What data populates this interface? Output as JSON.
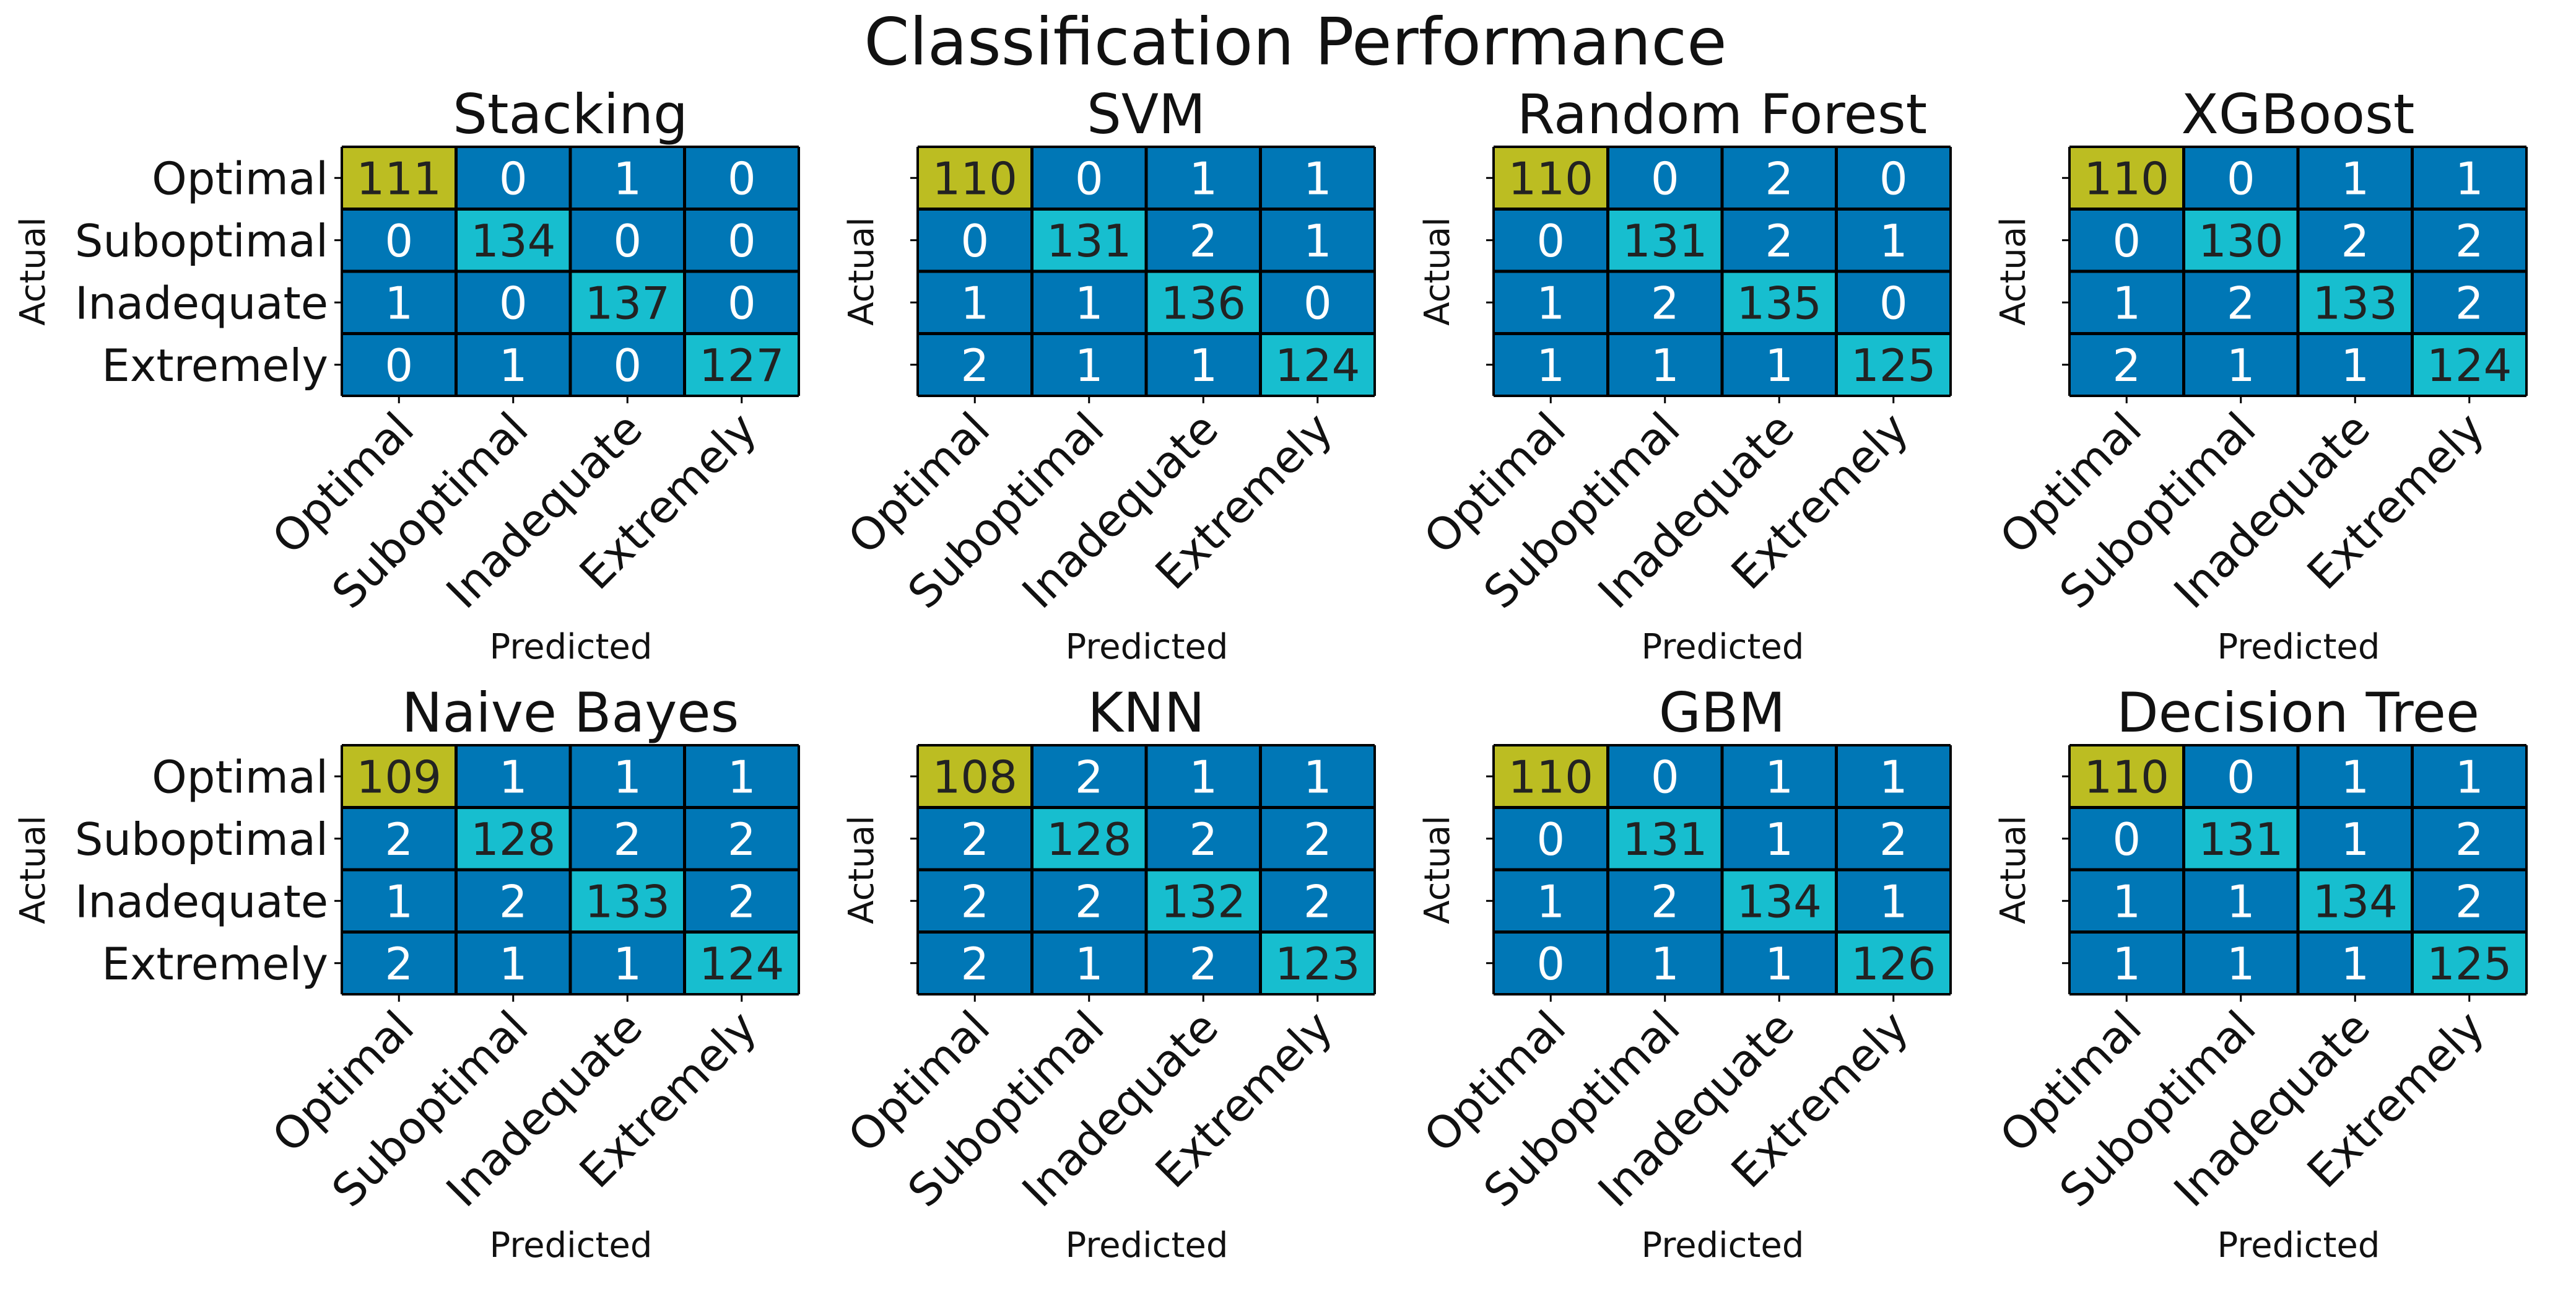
{
  "figure_title": "Classification Performance",
  "colors": {
    "correct_top_left": "#bcbd22",
    "correct": "#17becf",
    "error": "#0077b6",
    "grid_line": "#000000",
    "text_on_dark": "#ffffff",
    "text_on_light": "#222222"
  },
  "chart_data": [
    {
      "type": "heatmap",
      "title": "Stacking",
      "xlabel": "Predicted",
      "ylabel": "Actual",
      "x_categories": [
        "Optimal",
        "Suboptimal",
        "Inadequate",
        "Extremely"
      ],
      "y_categories": [
        "Optimal",
        "Suboptimal",
        "Inadequate",
        "Extremely"
      ],
      "y_ticklabels_shown": true,
      "matrix": [
        [
          111,
          0,
          1,
          0
        ],
        [
          0,
          134,
          0,
          0
        ],
        [
          1,
          0,
          137,
          0
        ],
        [
          0,
          1,
          0,
          127
        ]
      ]
    },
    {
      "type": "heatmap",
      "title": "SVM",
      "xlabel": "Predicted",
      "ylabel": "Actual",
      "x_categories": [
        "Optimal",
        "Suboptimal",
        "Inadequate",
        "Extremely"
      ],
      "y_categories": [
        "Optimal",
        "Suboptimal",
        "Inadequate",
        "Extremely"
      ],
      "y_ticklabels_shown": false,
      "matrix": [
        [
          110,
          0,
          1,
          1
        ],
        [
          0,
          131,
          2,
          1
        ],
        [
          1,
          1,
          136,
          0
        ],
        [
          2,
          1,
          1,
          124
        ]
      ]
    },
    {
      "type": "heatmap",
      "title": "Random Forest",
      "xlabel": "Predicted",
      "ylabel": "Actual",
      "x_categories": [
        "Optimal",
        "Suboptimal",
        "Inadequate",
        "Extremely"
      ],
      "y_categories": [
        "Optimal",
        "Suboptimal",
        "Inadequate",
        "Extremely"
      ],
      "y_ticklabels_shown": false,
      "matrix": [
        [
          110,
          0,
          2,
          0
        ],
        [
          0,
          131,
          2,
          1
        ],
        [
          1,
          2,
          135,
          0
        ],
        [
          1,
          1,
          1,
          125
        ]
      ]
    },
    {
      "type": "heatmap",
      "title": "XGBoost",
      "xlabel": "Predicted",
      "ylabel": "Actual",
      "x_categories": [
        "Optimal",
        "Suboptimal",
        "Inadequate",
        "Extremely"
      ],
      "y_categories": [
        "Optimal",
        "Suboptimal",
        "Inadequate",
        "Extremely"
      ],
      "y_ticklabels_shown": false,
      "matrix": [
        [
          110,
          0,
          1,
          1
        ],
        [
          0,
          130,
          2,
          2
        ],
        [
          1,
          2,
          133,
          2
        ],
        [
          2,
          1,
          1,
          124
        ]
      ]
    },
    {
      "type": "heatmap",
      "title": "Naive Bayes",
      "xlabel": "Predicted",
      "ylabel": "Actual",
      "x_categories": [
        "Optimal",
        "Suboptimal",
        "Inadequate",
        "Extremely"
      ],
      "y_categories": [
        "Optimal",
        "Suboptimal",
        "Inadequate",
        "Extremely"
      ],
      "y_ticklabels_shown": true,
      "matrix": [
        [
          109,
          1,
          1,
          1
        ],
        [
          2,
          128,
          2,
          2
        ],
        [
          1,
          2,
          133,
          2
        ],
        [
          2,
          1,
          1,
          124
        ]
      ]
    },
    {
      "type": "heatmap",
      "title": "KNN",
      "xlabel": "Predicted",
      "ylabel": "Actual",
      "x_categories": [
        "Optimal",
        "Suboptimal",
        "Inadequate",
        "Extremely"
      ],
      "y_categories": [
        "Optimal",
        "Suboptimal",
        "Inadequate",
        "Extremely"
      ],
      "y_ticklabels_shown": false,
      "matrix": [
        [
          108,
          2,
          1,
          1
        ],
        [
          2,
          128,
          2,
          2
        ],
        [
          2,
          2,
          132,
          2
        ],
        [
          2,
          1,
          2,
          123
        ]
      ]
    },
    {
      "type": "heatmap",
      "title": "GBM",
      "xlabel": "Predicted",
      "ylabel": "Actual",
      "x_categories": [
        "Optimal",
        "Suboptimal",
        "Inadequate",
        "Extremely"
      ],
      "y_categories": [
        "Optimal",
        "Suboptimal",
        "Inadequate",
        "Extremely"
      ],
      "y_ticklabels_shown": false,
      "matrix": [
        [
          110,
          0,
          1,
          1
        ],
        [
          0,
          131,
          1,
          2
        ],
        [
          1,
          2,
          134,
          1
        ],
        [
          0,
          1,
          1,
          126
        ]
      ]
    },
    {
      "type": "heatmap",
      "title": "Decision Tree",
      "xlabel": "Predicted",
      "ylabel": "Actual",
      "x_categories": [
        "Optimal",
        "Suboptimal",
        "Inadequate",
        "Extremely"
      ],
      "y_categories": [
        "Optimal",
        "Suboptimal",
        "Inadequate",
        "Extremely"
      ],
      "y_ticklabels_shown": false,
      "matrix": [
        [
          110,
          0,
          1,
          1
        ],
        [
          0,
          131,
          1,
          2
        ],
        [
          1,
          1,
          134,
          2
        ],
        [
          1,
          1,
          1,
          125
        ]
      ]
    }
  ]
}
